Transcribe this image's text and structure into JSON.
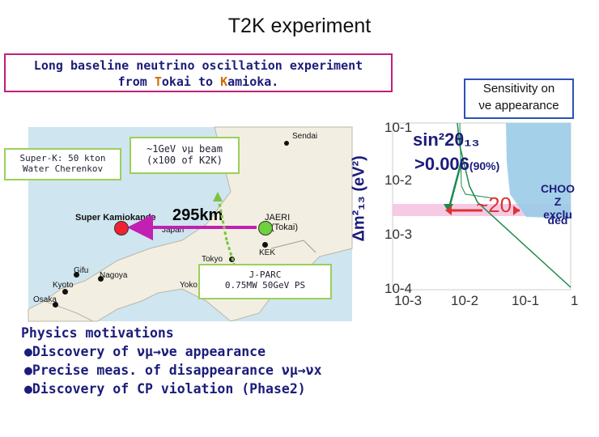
{
  "title": "T2K experiment",
  "intro": {
    "line1": "Long baseline neutrino oscillation experiment",
    "line2_a": "from ",
    "line2_b": "T",
    "line2_c": "okai to ",
    "line2_d": "K",
    "line2_e": "amioka."
  },
  "map": {
    "superk_box": [
      "Super-K: 50 kton",
      "Water Cherenkov"
    ],
    "beam_box": [
      "~1GeV νμ beam",
      "(x100 of K2K)"
    ],
    "jparc_box": [
      "J-PARC",
      "0.75MW 50GeV PS"
    ],
    "labels": {
      "sendai": "Sendai",
      "super_kamiokande": "Super Kamiokande",
      "distance": "295km",
      "japan": "Japan",
      "jaeri": "JAERI",
      "tokai": "(Tokai)",
      "kek": "KEK",
      "tokyo": "Tokyo",
      "gifu": "Gifu",
      "nagoya": "Nagoya",
      "kyoto": "Kyoto",
      "osaka": "Osaka",
      "yoko": "Yoko"
    }
  },
  "physics": {
    "heading": "Physics motivations",
    "items": [
      "●Discovery of νμ→νe appearance",
      "●Precise meas. of disappearance νμ→νx",
      "●Discovery of CP violation (Phase2)"
    ]
  },
  "sensitivity": {
    "box_line1": "Sensitivity on",
    "box_line2": "νe appearance",
    "ylabel": "Δm²₁₃ (eV²)",
    "result_line1": "sin²2θ₁₃",
    "result_line2": ">0.006",
    "result_conf": "(90%)",
    "factor": "~20",
    "chooz_lines": [
      "CHOO",
      "Z",
      "exclu",
      "ded"
    ],
    "y_ticks": [
      "10-1",
      "10-2",
      "10-3",
      "10-4"
    ],
    "x_ticks": [
      "10-3",
      "10-2",
      "10-1",
      "1"
    ]
  },
  "colors": {
    "title_text": "#111111",
    "intro_text": "#1c1c7a",
    "accent_orange": "#d06a00",
    "intro_border": "#c0207a",
    "sens_border": "#2a52b8",
    "curve_green": "#1b8a4a",
    "arrow_red": "#d33",
    "band_pink": "#f6c9e4"
  }
}
